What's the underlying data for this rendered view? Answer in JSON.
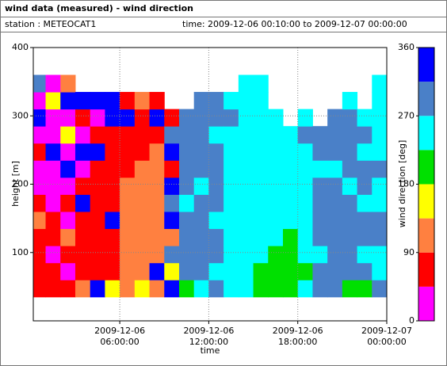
{
  "chart_data": {
    "type": "heatmap",
    "title": "wind data (measured) - wind direction",
    "station": "station : METEOCAT1",
    "period": "time: 2009-12-06 00:10:00 to 2009-12-07 00:00:00",
    "xlabel": "time",
    "ylabel": "height [m]",
    "zlabel": "wind direction [deg]",
    "xlim": [
      0.17,
      24
    ],
    "xticks": [
      {
        "value": 6,
        "label": [
          "2009-12-06",
          "06:00:00"
        ]
      },
      {
        "value": 12,
        "label": [
          "2009-12-06",
          "12:00:00"
        ]
      },
      {
        "value": 18,
        "label": [
          "2009-12-06",
          "18:00:00"
        ]
      },
      {
        "value": 24,
        "label": [
          "2009-12-07",
          "00:00:00"
        ]
      }
    ],
    "ylim": [
      0,
      400
    ],
    "yticks": [
      100,
      200,
      300,
      400
    ],
    "zlim": [
      0,
      360
    ],
    "zticks": [
      0,
      90,
      180,
      270,
      360
    ],
    "colors": [
      "#ff00ff",
      "#ff0000",
      "#ff8040",
      "#ffff00",
      "#00e000",
      "#00ffff",
      "#4a80c8",
      "#0000ff"
    ],
    "grid": true,
    "x": [
      0.5,
      1.5,
      2.5,
      3.5,
      4.5,
      5.5,
      6.5,
      7.5,
      8.5,
      9.5,
      10.5,
      11.5,
      12.5,
      13.5,
      14.5,
      15.5,
      16.5,
      17.5,
      18.5,
      19.5,
      20.5,
      21.5,
      22.5,
      23.5
    ],
    "y": [
      47.5,
      72.5,
      97.5,
      122.5,
      147.5,
      172.5,
      197.5,
      222.5,
      247.5,
      272.5,
      297.5,
      322.5,
      347.5
    ],
    "values": [
      [
        70,
        70,
        70,
        70,
        110,
        70,
        20,
        20,
        70,
        20,
        340,
        20,
        290
      ],
      [
        70,
        70,
        20,
        70,
        70,
        20,
        20,
        20,
        340,
        20,
        20,
        160,
        20
      ],
      [
        70,
        20,
        70,
        110,
        20,
        70,
        20,
        340,
        20,
        160,
        20,
        340,
        110
      ],
      [
        110,
        70,
        70,
        70,
        70,
        340,
        70,
        20,
        340,
        20,
        70,
        340,
        null
      ],
      [
        340,
        70,
        70,
        70,
        70,
        70,
        70,
        70,
        340,
        70,
        20,
        340,
        null
      ],
      [
        160,
        70,
        70,
        70,
        340,
        70,
        70,
        70,
        70,
        70,
        340,
        340,
        null
      ],
      [
        110,
        110,
        110,
        110,
        110,
        110,
        110,
        70,
        70,
        70,
        340,
        70,
        null
      ],
      [
        160,
        110,
        110,
        110,
        110,
        110,
        110,
        110,
        70,
        70,
        70,
        110,
        null
      ],
      [
        110,
        340,
        110,
        110,
        110,
        110,
        110,
        110,
        110,
        70,
        340,
        70,
        null
      ],
      [
        340,
        160,
        290,
        110,
        340,
        290,
        340,
        70,
        340,
        290,
        70,
        null,
        null
      ],
      [
        200,
        290,
        290,
        290,
        290,
        245,
        290,
        290,
        290,
        290,
        290,
        null,
        null
      ],
      [
        245,
        290,
        290,
        290,
        290,
        290,
        245,
        290,
        290,
        290,
        290,
        290,
        null
      ],
      [
        290,
        245,
        290,
        290,
        245,
        290,
        290,
        290,
        290,
        245,
        290,
        290,
        null
      ],
      [
        245,
        245,
        245,
        245,
        245,
        245,
        245,
        245,
        245,
        245,
        290,
        245,
        null
      ],
      [
        245,
        245,
        245,
        245,
        245,
        245,
        245,
        245,
        245,
        245,
        245,
        245,
        245
      ],
      [
        200,
        200,
        245,
        245,
        245,
        245,
        245,
        245,
        245,
        245,
        245,
        245,
        245
      ],
      [
        200,
        200,
        200,
        245,
        245,
        245,
        245,
        245,
        245,
        245,
        245,
        null,
        null
      ],
      [
        200,
        200,
        200,
        200,
        245,
        245,
        245,
        245,
        245,
        245,
        null,
        null,
        null
      ],
      [
        245,
        200,
        245,
        245,
        245,
        245,
        245,
        245,
        245,
        290,
        245,
        null,
        null
      ],
      [
        290,
        290,
        245,
        290,
        290,
        290,
        290,
        245,
        290,
        290,
        null,
        null,
        null
      ],
      [
        290,
        290,
        290,
        290,
        290,
        290,
        290,
        245,
        290,
        290,
        290,
        null,
        null
      ],
      [
        200,
        290,
        290,
        290,
        290,
        290,
        245,
        290,
        290,
        290,
        290,
        245,
        null
      ],
      [
        200,
        290,
        245,
        290,
        290,
        245,
        290,
        290,
        245,
        290,
        245,
        null,
        null
      ],
      [
        290,
        245,
        245,
        290,
        290,
        245,
        245,
        290,
        245,
        245,
        245,
        245,
        245
      ]
    ]
  }
}
